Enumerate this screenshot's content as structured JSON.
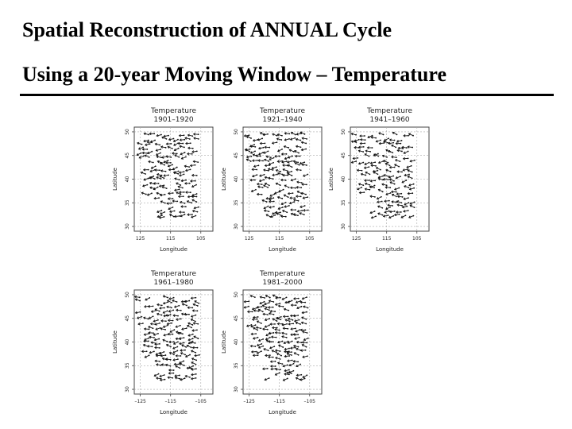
{
  "slide": {
    "title_line1": "Spatial Reconstruction of ANNUAL Cycle",
    "title_line2": "Using a 20-year Moving Window – Temperature"
  },
  "chart_data": [
    {
      "type": "scatter",
      "title": "Temperature",
      "subtitle": "1901–1920",
      "xlabel": "Longitude",
      "ylabel": "Latitude",
      "xticks": [
        "125",
        "115",
        "105"
      ],
      "yticks": [
        "50",
        "45",
        "40",
        "35",
        "30"
      ],
      "xlim": [
        -127,
        -101
      ],
      "ylim": [
        29,
        51
      ],
      "grid": true,
      "markers": "wind-vane arrows (annual-cycle phase at each station)"
    },
    {
      "type": "scatter",
      "title": "Temperature",
      "subtitle": "1921–1940",
      "xlabel": "Longitude",
      "ylabel": "Latitude",
      "xticks": [
        "125",
        "115",
        "105"
      ],
      "yticks": [
        "50",
        "45",
        "40",
        "35",
        "30"
      ],
      "xlim": [
        -127,
        -101
      ],
      "ylim": [
        29,
        51
      ],
      "grid": true,
      "markers": "wind-vane arrows (annual-cycle phase at each station)"
    },
    {
      "type": "scatter",
      "title": "Temperature",
      "subtitle": "1941–1960",
      "xlabel": "Longitude",
      "ylabel": "Latitude",
      "xticks": [
        "125",
        "115",
        "105"
      ],
      "yticks": [
        "50",
        "45",
        "40",
        "35",
        "30"
      ],
      "xlim": [
        -127,
        -101
      ],
      "ylim": [
        29,
        51
      ],
      "grid": true,
      "markers": "wind-vane arrows (annual-cycle phase at each station)"
    },
    {
      "type": "scatter",
      "title": "Temperature",
      "subtitle": "1961–1980",
      "xlabel": "Longitude",
      "ylabel": "Latitude",
      "xticks": [
        "–125",
        "–115",
        "–105"
      ],
      "yticks": [
        "50",
        "45",
        "40",
        "35",
        "30"
      ],
      "xlim": [
        -127,
        -101
      ],
      "ylim": [
        29,
        51
      ],
      "grid": true,
      "markers": "wind-vane arrows (annual-cycle phase at each station)"
    },
    {
      "type": "scatter",
      "title": "Temperature",
      "subtitle": "1981–2000",
      "xlabel": "Longitude",
      "ylabel": "Latitude",
      "xticks": [
        "–125",
        "–115",
        "–105"
      ],
      "yticks": [
        "50",
        "45",
        "40",
        "35",
        "30"
      ],
      "xlim": [
        -127,
        -101
      ],
      "ylim": [
        29,
        51
      ],
      "grid": true,
      "markers": "wind-vane arrows (annual-cycle phase at each station)"
    }
  ]
}
